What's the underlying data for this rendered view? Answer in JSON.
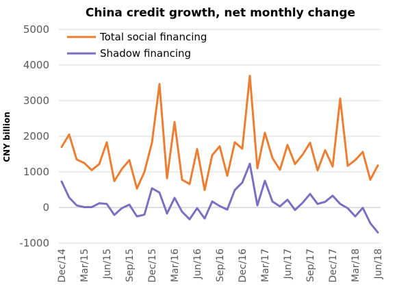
{
  "chart_data": {
    "type": "line",
    "title": "China credit growth, net monthly change",
    "ylabel": "CNY billion",
    "xlabel": "",
    "ylim": [
      -1000,
      5000
    ],
    "yticks": [
      -1000,
      0,
      1000,
      2000,
      3000,
      4000,
      5000
    ],
    "grid": "horizontal",
    "legend": "top-left",
    "x": [
      "Dec/14",
      "Jan/15",
      "Feb/15",
      "Mar/15",
      "Apr/15",
      "May/15",
      "Jun/15",
      "Jul/15",
      "Aug/15",
      "Sep/15",
      "Oct/15",
      "Nov/15",
      "Dec/15",
      "Jan/16",
      "Feb/16",
      "Mar/16",
      "Apr/16",
      "May/16",
      "Jun/16",
      "Jul/16",
      "Aug/16",
      "Sep/16",
      "Oct/16",
      "Nov/16",
      "Dec/16",
      "Jan/17",
      "Feb/17",
      "Mar/17",
      "Apr/17",
      "May/17",
      "Jun/17",
      "Jul/17",
      "Aug/17",
      "Sep/17",
      "Oct/17",
      "Nov/17",
      "Dec/17",
      "Jan/18",
      "Feb/18",
      "Mar/18",
      "Apr/18",
      "May/18",
      "Jun/18"
    ],
    "xtick_labels": [
      "Dec/14",
      "Mar/15",
      "Jun/15",
      "Sep/15",
      "Dec/15",
      "Mar/16",
      "Jun/16",
      "Sep/16",
      "Dec/16",
      "Mar/17",
      "Jun/17",
      "Sep/17",
      "Dec/17",
      "Mar/18",
      "Jun/18"
    ],
    "series": [
      {
        "name": "Total social financing",
        "color": "#ed7d31",
        "values": [
          1700,
          2050,
          1350,
          1250,
          1050,
          1220,
          1830,
          740,
          1080,
          1330,
          530,
          1000,
          1820,
          3470,
          820,
          2400,
          780,
          660,
          1640,
          490,
          1470,
          1720,
          890,
          1830,
          1650,
          3700,
          1100,
          2100,
          1390,
          1060,
          1760,
          1220,
          1480,
          1820,
          1040,
          1610,
          1150,
          3060,
          1170,
          1330,
          1560,
          780,
          1180
        ]
      },
      {
        "name": "Shadow financing",
        "color": "#7a6fc0",
        "values": [
          730,
          280,
          60,
          10,
          10,
          120,
          100,
          -210,
          -20,
          80,
          -250,
          -200,
          540,
          420,
          -170,
          270,
          -120,
          -330,
          -20,
          -310,
          170,
          40,
          -60,
          490,
          700,
          1230,
          60,
          750,
          170,
          30,
          220,
          -70,
          130,
          380,
          100,
          160,
          330,
          100,
          -20,
          -250,
          -10,
          -440,
          -700
        ]
      }
    ]
  }
}
